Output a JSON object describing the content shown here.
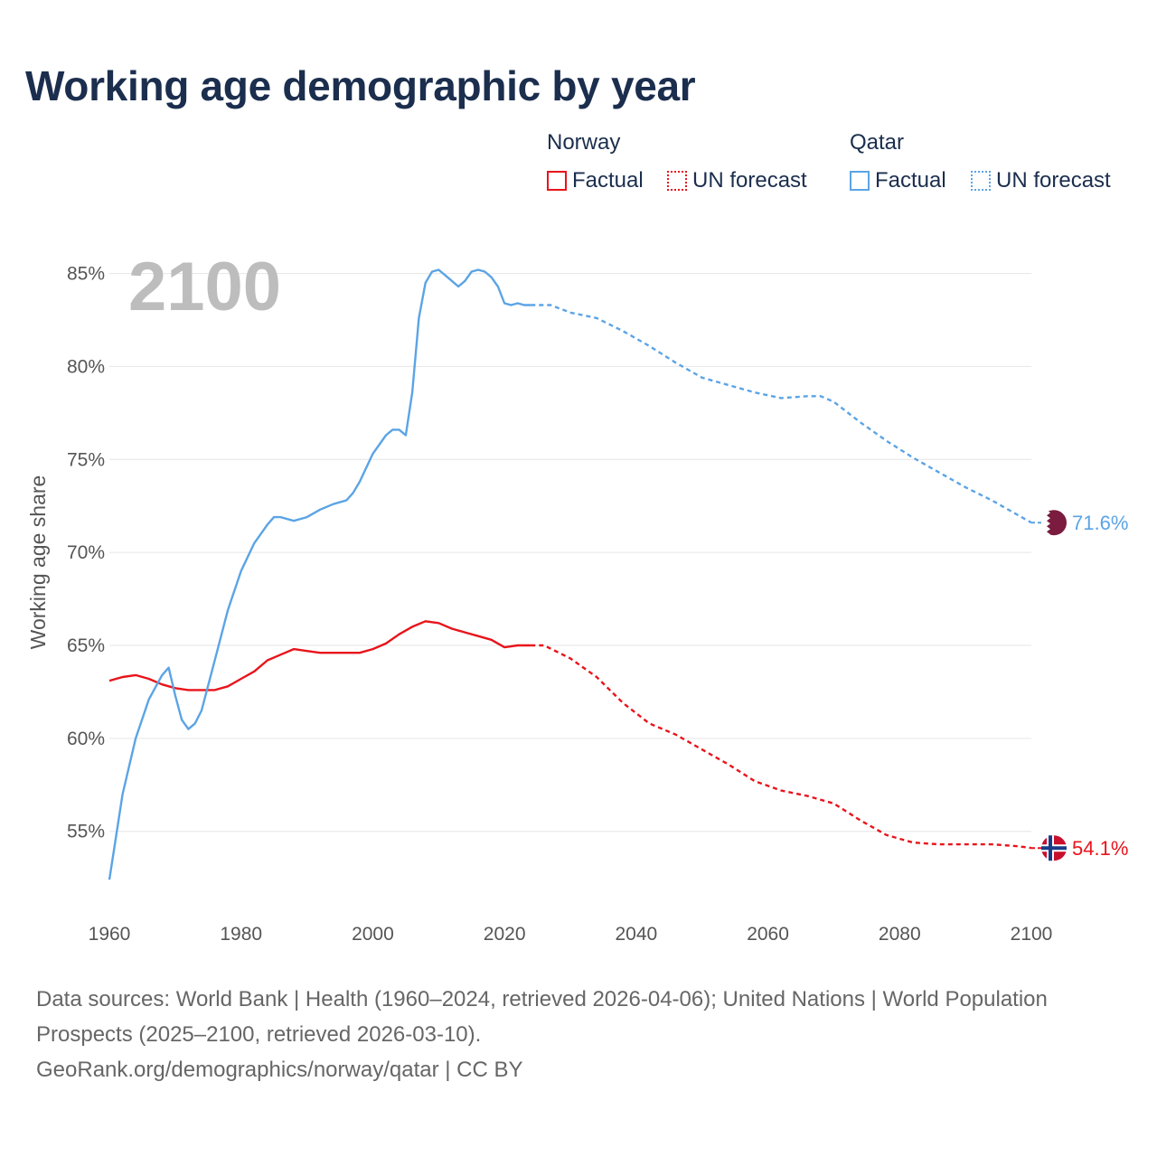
{
  "title": "Working age demographic by year",
  "legend": {
    "groups": [
      {
        "name": "Norway",
        "factual_label": "Factual",
        "forecast_label": "UN forecast",
        "color": "#e8141b"
      },
      {
        "name": "Qatar",
        "factual_label": "Factual",
        "forecast_label": "UN forecast",
        "color": "#5ba4e5"
      }
    ]
  },
  "icons": {
    "qatar_flag": "qatar-flag-icon",
    "norway_flag": "norway-flag-icon"
  },
  "flag_colors": {
    "qatar": "#7a1b3f",
    "norway_red": "#c8102e",
    "norway_blue": "#1b3b8a"
  },
  "footer": {
    "sources": "Data sources: World Bank | Health (1960–2024, retrieved 2026-04-06); United Nations | World Population Prospects (2025–2100, retrieved 2026-03-10).",
    "attribution": "GeoRank.org/demographics/norway/qatar | CC BY"
  },
  "chart_data": {
    "type": "line",
    "title": "Working age demographic by year",
    "xlabel": "",
    "ylabel": "Working age share",
    "current_year_label": "2100",
    "xlim": [
      1960,
      2100
    ],
    "ylim": [
      51,
      86
    ],
    "x_ticks": [
      1960,
      1980,
      2000,
      2020,
      2040,
      2060,
      2080,
      2100
    ],
    "x_tick_labels": [
      "1960",
      "1980",
      "2000",
      "2020",
      "2040",
      "2060",
      "2080",
      "2100"
    ],
    "y_ticks": [
      55,
      60,
      65,
      70,
      75,
      80,
      85
    ],
    "y_tick_labels": [
      "55%",
      "60%",
      "65%",
      "70%",
      "75%",
      "80%",
      "85%"
    ],
    "grid": true,
    "series": [
      {
        "name": "Norway",
        "color": "#e8141b",
        "end_label": "54.1%",
        "factual": {
          "x": [
            1960,
            1962,
            1964,
            1966,
            1968,
            1970,
            1972,
            1974,
            1976,
            1978,
            1980,
            1982,
            1984,
            1986,
            1988,
            1990,
            1992,
            1994,
            1996,
            1998,
            2000,
            2002,
            2004,
            2006,
            2008,
            2010,
            2012,
            2014,
            2016,
            2018,
            2020,
            2022,
            2024
          ],
          "y": [
            63.1,
            63.3,
            63.4,
            63.2,
            62.9,
            62.7,
            62.6,
            62.6,
            62.6,
            62.8,
            63.2,
            63.6,
            64.2,
            64.5,
            64.8,
            64.7,
            64.6,
            64.6,
            64.6,
            64.6,
            64.8,
            65.1,
            65.6,
            66.0,
            66.3,
            66.2,
            65.9,
            65.7,
            65.5,
            65.3,
            64.9,
            65.0,
            65.0
          ]
        },
        "forecast": {
          "x": [
            2024,
            2026,
            2030,
            2034,
            2038,
            2042,
            2046,
            2050,
            2054,
            2058,
            2062,
            2066,
            2070,
            2074,
            2078,
            2082,
            2086,
            2090,
            2094,
            2098,
            2100
          ],
          "y": [
            65.0,
            65.0,
            64.3,
            63.3,
            61.9,
            60.8,
            60.2,
            59.4,
            58.6,
            57.7,
            57.2,
            56.9,
            56.5,
            55.6,
            54.8,
            54.4,
            54.3,
            54.3,
            54.3,
            54.2,
            54.1
          ]
        }
      },
      {
        "name": "Qatar",
        "color": "#5ba4e5",
        "end_label": "71.6%",
        "factual": {
          "x": [
            1960,
            1962,
            1964,
            1966,
            1968,
            1969,
            1970,
            1971,
            1972,
            1973,
            1974,
            1976,
            1978,
            1980,
            1982,
            1984,
            1985,
            1986,
            1988,
            1990,
            1992,
            1994,
            1996,
            1997,
            1998,
            2000,
            2002,
            2003,
            2004,
            2005,
            2006,
            2007,
            2008,
            2009,
            2010,
            2011,
            2012,
            2013,
            2014,
            2015,
            2016,
            2017,
            2018,
            2019,
            2020,
            2021,
            2022,
            2023,
            2024
          ],
          "y": [
            52.4,
            57.0,
            60.0,
            62.1,
            63.4,
            63.8,
            62.3,
            61.0,
            60.5,
            60.8,
            61.5,
            64.2,
            66.9,
            69.0,
            70.5,
            71.5,
            71.9,
            71.9,
            71.7,
            71.9,
            72.3,
            72.6,
            72.8,
            73.2,
            73.8,
            75.3,
            76.3,
            76.6,
            76.6,
            76.3,
            78.6,
            82.6,
            84.5,
            85.1,
            85.2,
            84.9,
            84.6,
            84.3,
            84.6,
            85.1,
            85.2,
            85.1,
            84.8,
            84.3,
            83.4,
            83.3,
            83.4,
            83.3,
            83.3
          ]
        },
        "forecast": {
          "x": [
            2024,
            2027,
            2030,
            2034,
            2038,
            2042,
            2046,
            2050,
            2054,
            2058,
            2062,
            2066,
            2068,
            2070,
            2074,
            2078,
            2082,
            2086,
            2090,
            2094,
            2098,
            2100
          ],
          "y": [
            83.3,
            83.3,
            82.9,
            82.6,
            81.9,
            81.1,
            80.2,
            79.4,
            79.0,
            78.6,
            78.3,
            78.4,
            78.4,
            78.1,
            77.0,
            76.0,
            75.1,
            74.3,
            73.5,
            72.8,
            72.0,
            71.6
          ]
        }
      }
    ]
  }
}
